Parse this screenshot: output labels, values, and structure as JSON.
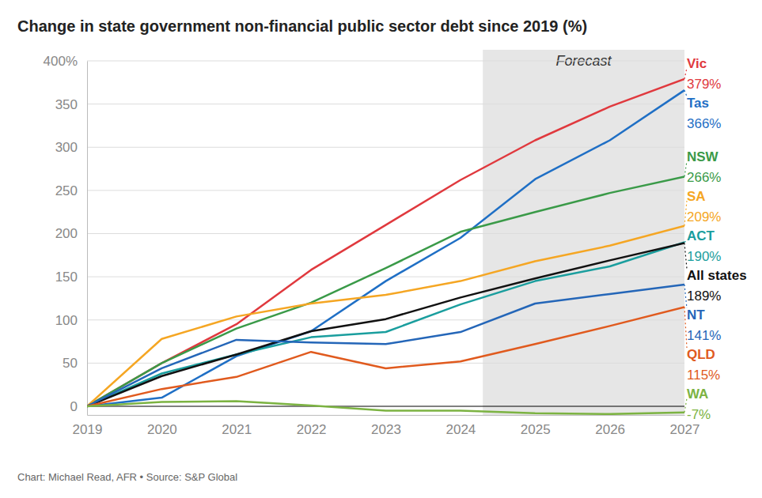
{
  "chart_data": {
    "type": "line",
    "title": "Change in state government non-financial public sector debt since 2019 (%)",
    "source": "Chart: Michael Read, AFR • Source: S&P Global",
    "x": [
      2019,
      2020,
      2021,
      2022,
      2023,
      2024,
      2025,
      2026,
      2027
    ],
    "xlim": [
      2019,
      2027
    ],
    "xticks": [
      2019,
      2020,
      2021,
      2022,
      2023,
      2024,
      2025,
      2026,
      2027
    ],
    "ylim": [
      -10,
      400
    ],
    "yticks": [
      0,
      50,
      100,
      150,
      200,
      250,
      300,
      350,
      {
        "value": 400,
        "label": "400%"
      }
    ],
    "grid": true,
    "data_labels": true,
    "annotations": [
      {
        "text": "Forecast",
        "x_start": 2024.3,
        "x_end": 2027
      }
    ],
    "series": [
      {
        "name": "Vic",
        "color": "#e0393e",
        "values": [
          0,
          50,
          95,
          158,
          210,
          262,
          308,
          347,
          379
        ],
        "value_labels": [
          null,
          null,
          null,
          null,
          null,
          null,
          null,
          null,
          "379%"
        ]
      },
      {
        "name": "Tas",
        "color": "#1f6fc5",
        "values": [
          0,
          10,
          58,
          87,
          145,
          195,
          263,
          308,
          366
        ],
        "value_labels": [
          null,
          null,
          null,
          null,
          null,
          null,
          null,
          null,
          "366%"
        ]
      },
      {
        "name": "NSW",
        "color": "#3a9a48",
        "values": [
          0,
          50,
          90,
          120,
          160,
          202,
          225,
          247,
          266
        ],
        "value_labels": [
          null,
          null,
          null,
          null,
          null,
          null,
          null,
          null,
          "266%"
        ]
      },
      {
        "name": "SA",
        "color": "#f5a623",
        "values": [
          0,
          78,
          104,
          119,
          129,
          145,
          168,
          186,
          209
        ],
        "value_labels": [
          null,
          null,
          null,
          null,
          null,
          null,
          null,
          null,
          "209%"
        ]
      },
      {
        "name": "ACT",
        "color": "#1a9e9e",
        "values": [
          0,
          38,
          60,
          80,
          86,
          118,
          145,
          162,
          190
        ],
        "value_labels": [
          null,
          null,
          null,
          null,
          null,
          null,
          null,
          null,
          "190%"
        ]
      },
      {
        "name": "All states",
        "color": "#111111",
        "values": [
          0,
          35,
          60,
          87,
          101,
          126,
          148,
          169,
          189
        ],
        "value_labels": [
          null,
          null,
          null,
          null,
          null,
          null,
          null,
          null,
          "189%"
        ]
      },
      {
        "name": "NT",
        "color": "#2466b8",
        "values": [
          0,
          44,
          77,
          74,
          72,
          86,
          119,
          130,
          141
        ],
        "value_labels": [
          null,
          null,
          null,
          null,
          null,
          null,
          null,
          null,
          "141%"
        ]
      },
      {
        "name": "QLD",
        "color": "#e05a1e",
        "values": [
          0,
          20,
          34,
          63,
          44,
          52,
          72,
          93,
          115
        ],
        "value_labels": [
          null,
          null,
          null,
          null,
          null,
          null,
          null,
          null,
          "115%"
        ]
      },
      {
        "name": "WA",
        "color": "#7cb342",
        "values": [
          0,
          5,
          6,
          1,
          -5,
          -5,
          -8,
          -9,
          -7
        ],
        "value_labels": [
          null,
          null,
          null,
          null,
          null,
          null,
          null,
          null,
          "-7%"
        ]
      }
    ]
  }
}
